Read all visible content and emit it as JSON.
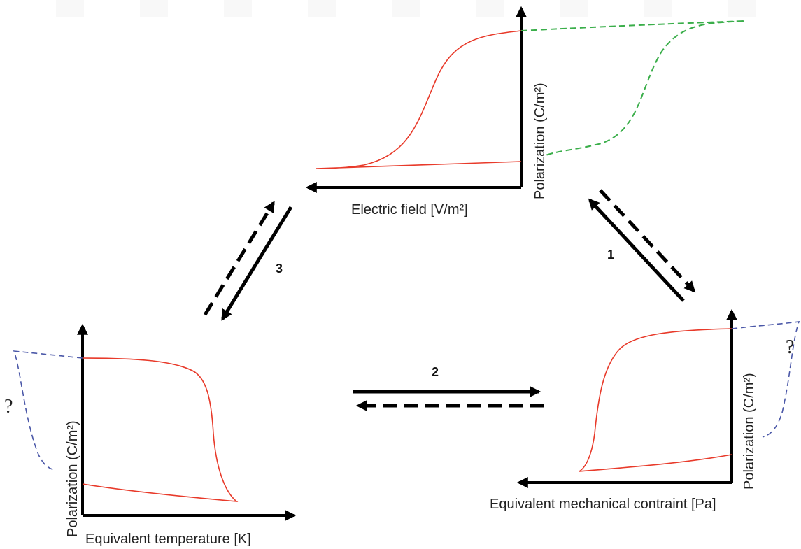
{
  "colors": {
    "axis": "#000000",
    "hysteresis_loop": "#e83a2a",
    "electric_field_dashed": "#3aae4a",
    "unknown_dashed": "#4b58a8",
    "arrows": "#000000"
  },
  "panels": {
    "top": {
      "x_label": "Electric field [V/m²]",
      "y_label": "Polarization (C/m²)"
    },
    "left": {
      "x_label": "Equivalent temperature [K]",
      "y_label": "Polarization (C/m²)",
      "question_mark": "?"
    },
    "right": {
      "x_label": "Equivalent mechanical contraint [Pa]",
      "y_label": "Polarization (C/m²)",
      "question_mark": "?"
    }
  },
  "arrows": {
    "one": {
      "label": "1"
    },
    "two": {
      "label": "2"
    },
    "three": {
      "label": "3"
    }
  }
}
